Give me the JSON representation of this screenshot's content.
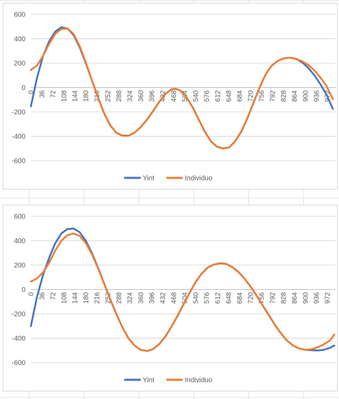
{
  "chart_data": [
    {
      "type": "line",
      "x_range": [
        0,
        999
      ],
      "x_ticks": [
        0,
        36,
        72,
        108,
        144,
        180,
        216,
        252,
        288,
        324,
        360,
        396,
        432,
        468,
        504,
        540,
        576,
        612,
        648,
        684,
        720,
        756,
        792,
        828,
        864,
        900,
        936,
        972
      ],
      "ylim": [
        -600,
        600
      ],
      "y_ticks": [
        600,
        400,
        200,
        0,
        -200,
        -400,
        -600
      ],
      "grid": true,
      "legend": "bottom",
      "series": [
        {
          "name": "Yint",
          "color": "#4472c4",
          "points": [
            [
              0,
              -155
            ],
            [
              20,
              80
            ],
            [
              40,
              260
            ],
            [
              60,
              380
            ],
            [
              80,
              460
            ],
            [
              100,
              495
            ],
            [
              120,
              485
            ],
            [
              140,
              430
            ],
            [
              160,
              330
            ],
            [
              180,
              200
            ],
            [
              200,
              60
            ],
            [
              220,
              -80
            ],
            [
              240,
              -210
            ],
            [
              260,
              -310
            ],
            [
              280,
              -370
            ],
            [
              300,
              -395
            ],
            [
              320,
              -395
            ],
            [
              340,
              -370
            ],
            [
              360,
              -325
            ],
            [
              380,
              -265
            ],
            [
              400,
              -195
            ],
            [
              420,
              -120
            ],
            [
              440,
              -55
            ],
            [
              460,
              -15
            ],
            [
              475,
              -10
            ],
            [
              490,
              -25
            ],
            [
              510,
              -80
            ],
            [
              530,
              -160
            ],
            [
              550,
              -260
            ],
            [
              570,
              -360
            ],
            [
              590,
              -440
            ],
            [
              610,
              -485
            ],
            [
              630,
              -500
            ],
            [
              650,
              -490
            ],
            [
              670,
              -440
            ],
            [
              690,
              -360
            ],
            [
              710,
              -250
            ],
            [
              730,
              -125
            ],
            [
              750,
              0
            ],
            [
              770,
              110
            ],
            [
              790,
              180
            ],
            [
              810,
              220
            ],
            [
              830,
              240
            ],
            [
              850,
              245
            ],
            [
              870,
              235
            ],
            [
              890,
              205
            ],
            [
              910,
              160
            ],
            [
              930,
              100
            ],
            [
              950,
              25
            ],
            [
              970,
              -60
            ],
            [
              990,
              -175
            ]
          ]
        },
        {
          "name": "Individuo",
          "color": "#ed7d31",
          "points": [
            [
              0,
              145
            ],
            [
              20,
              180
            ],
            [
              40,
              260
            ],
            [
              60,
              360
            ],
            [
              80,
              440
            ],
            [
              100,
              480
            ],
            [
              120,
              485
            ],
            [
              140,
              440
            ],
            [
              160,
              340
            ],
            [
              180,
              205
            ],
            [
              200,
              60
            ],
            [
              220,
              -80
            ],
            [
              240,
              -210
            ],
            [
              260,
              -310
            ],
            [
              280,
              -370
            ],
            [
              300,
              -395
            ],
            [
              320,
              -395
            ],
            [
              340,
              -370
            ],
            [
              360,
              -325
            ],
            [
              380,
              -265
            ],
            [
              400,
              -195
            ],
            [
              420,
              -120
            ],
            [
              440,
              -55
            ],
            [
              460,
              -15
            ],
            [
              475,
              -10
            ],
            [
              490,
              -25
            ],
            [
              510,
              -80
            ],
            [
              530,
              -160
            ],
            [
              550,
              -260
            ],
            [
              570,
              -360
            ],
            [
              590,
              -440
            ],
            [
              610,
              -485
            ],
            [
              630,
              -500
            ],
            [
              650,
              -490
            ],
            [
              670,
              -440
            ],
            [
              690,
              -360
            ],
            [
              710,
              -250
            ],
            [
              730,
              -125
            ],
            [
              750,
              0
            ],
            [
              770,
              110
            ],
            [
              790,
              180
            ],
            [
              810,
              220
            ],
            [
              830,
              240
            ],
            [
              850,
              245
            ],
            [
              870,
              235
            ],
            [
              890,
              215
            ],
            [
              910,
              185
            ],
            [
              930,
              140
            ],
            [
              950,
              80
            ],
            [
              970,
              10
            ],
            [
              990,
              -95
            ]
          ]
        }
      ]
    },
    {
      "type": "line",
      "x_range": [
        0,
        999
      ],
      "x_ticks": [
        0,
        36,
        72,
        108,
        144,
        180,
        216,
        252,
        288,
        324,
        360,
        396,
        432,
        468,
        504,
        540,
        576,
        612,
        648,
        684,
        720,
        756,
        792,
        828,
        864,
        900,
        936,
        972
      ],
      "ylim": [
        -600,
        600
      ],
      "y_ticks": [
        600,
        400,
        200,
        0,
        -200,
        -400,
        -600
      ],
      "grid": true,
      "legend": "bottom",
      "series": [
        {
          "name": "Yint",
          "color": "#4472c4",
          "points": [
            [
              0,
              -300
            ],
            [
              20,
              -60
            ],
            [
              40,
              120
            ],
            [
              60,
              260
            ],
            [
              80,
              380
            ],
            [
              100,
              460
            ],
            [
              120,
              495
            ],
            [
              140,
              500
            ],
            [
              160,
              470
            ],
            [
              180,
              400
            ],
            [
              200,
              300
            ],
            [
              220,
              180
            ],
            [
              240,
              50
            ],
            [
              260,
              -80
            ],
            [
              280,
              -200
            ],
            [
              300,
              -310
            ],
            [
              320,
              -400
            ],
            [
              340,
              -460
            ],
            [
              360,
              -495
            ],
            [
              380,
              -505
            ],
            [
              400,
              -490
            ],
            [
              420,
              -450
            ],
            [
              440,
              -390
            ],
            [
              460,
              -310
            ],
            [
              480,
              -220
            ],
            [
              500,
              -125
            ],
            [
              520,
              -30
            ],
            [
              540,
              60
            ],
            [
              560,
              130
            ],
            [
              580,
              180
            ],
            [
              600,
              205
            ],
            [
              620,
              215
            ],
            [
              640,
              210
            ],
            [
              660,
              185
            ],
            [
              680,
              145
            ],
            [
              700,
              90
            ],
            [
              720,
              25
            ],
            [
              740,
              -50
            ],
            [
              760,
              -130
            ],
            [
              780,
              -210
            ],
            [
              800,
              -290
            ],
            [
              820,
              -360
            ],
            [
              840,
              -420
            ],
            [
              860,
              -460
            ],
            [
              880,
              -485
            ],
            [
              900,
              -495
            ],
            [
              920,
              -498
            ],
            [
              940,
              -500
            ],
            [
              960,
              -495
            ],
            [
              980,
              -480
            ],
            [
              995,
              -460
            ]
          ]
        },
        {
          "name": "Individuo",
          "color": "#ed7d31",
          "points": [
            [
              0,
              65
            ],
            [
              20,
              90
            ],
            [
              40,
              140
            ],
            [
              60,
              220
            ],
            [
              80,
              320
            ],
            [
              100,
              400
            ],
            [
              120,
              445
            ],
            [
              140,
              460
            ],
            [
              160,
              440
            ],
            [
              180,
              380
            ],
            [
              200,
              290
            ],
            [
              220,
              175
            ],
            [
              240,
              50
            ],
            [
              260,
              -80
            ],
            [
              280,
              -200
            ],
            [
              300,
              -310
            ],
            [
              320,
              -400
            ],
            [
              340,
              -460
            ],
            [
              360,
              -495
            ],
            [
              380,
              -505
            ],
            [
              400,
              -490
            ],
            [
              420,
              -450
            ],
            [
              440,
              -390
            ],
            [
              460,
              -310
            ],
            [
              480,
              -220
            ],
            [
              500,
              -125
            ],
            [
              520,
              -30
            ],
            [
              540,
              60
            ],
            [
              560,
              130
            ],
            [
              580,
              180
            ],
            [
              600,
              205
            ],
            [
              620,
              215
            ],
            [
              640,
              210
            ],
            [
              660,
              185
            ],
            [
              680,
              145
            ],
            [
              700,
              90
            ],
            [
              720,
              25
            ],
            [
              740,
              -50
            ],
            [
              760,
              -130
            ],
            [
              780,
              -210
            ],
            [
              800,
              -290
            ],
            [
              820,
              -360
            ],
            [
              840,
              -420
            ],
            [
              860,
              -460
            ],
            [
              880,
              -485
            ],
            [
              900,
              -495
            ],
            [
              920,
              -490
            ],
            [
              940,
              -475
            ],
            [
              960,
              -450
            ],
            [
              980,
              -420
            ],
            [
              995,
              -370
            ]
          ]
        }
      ]
    }
  ]
}
